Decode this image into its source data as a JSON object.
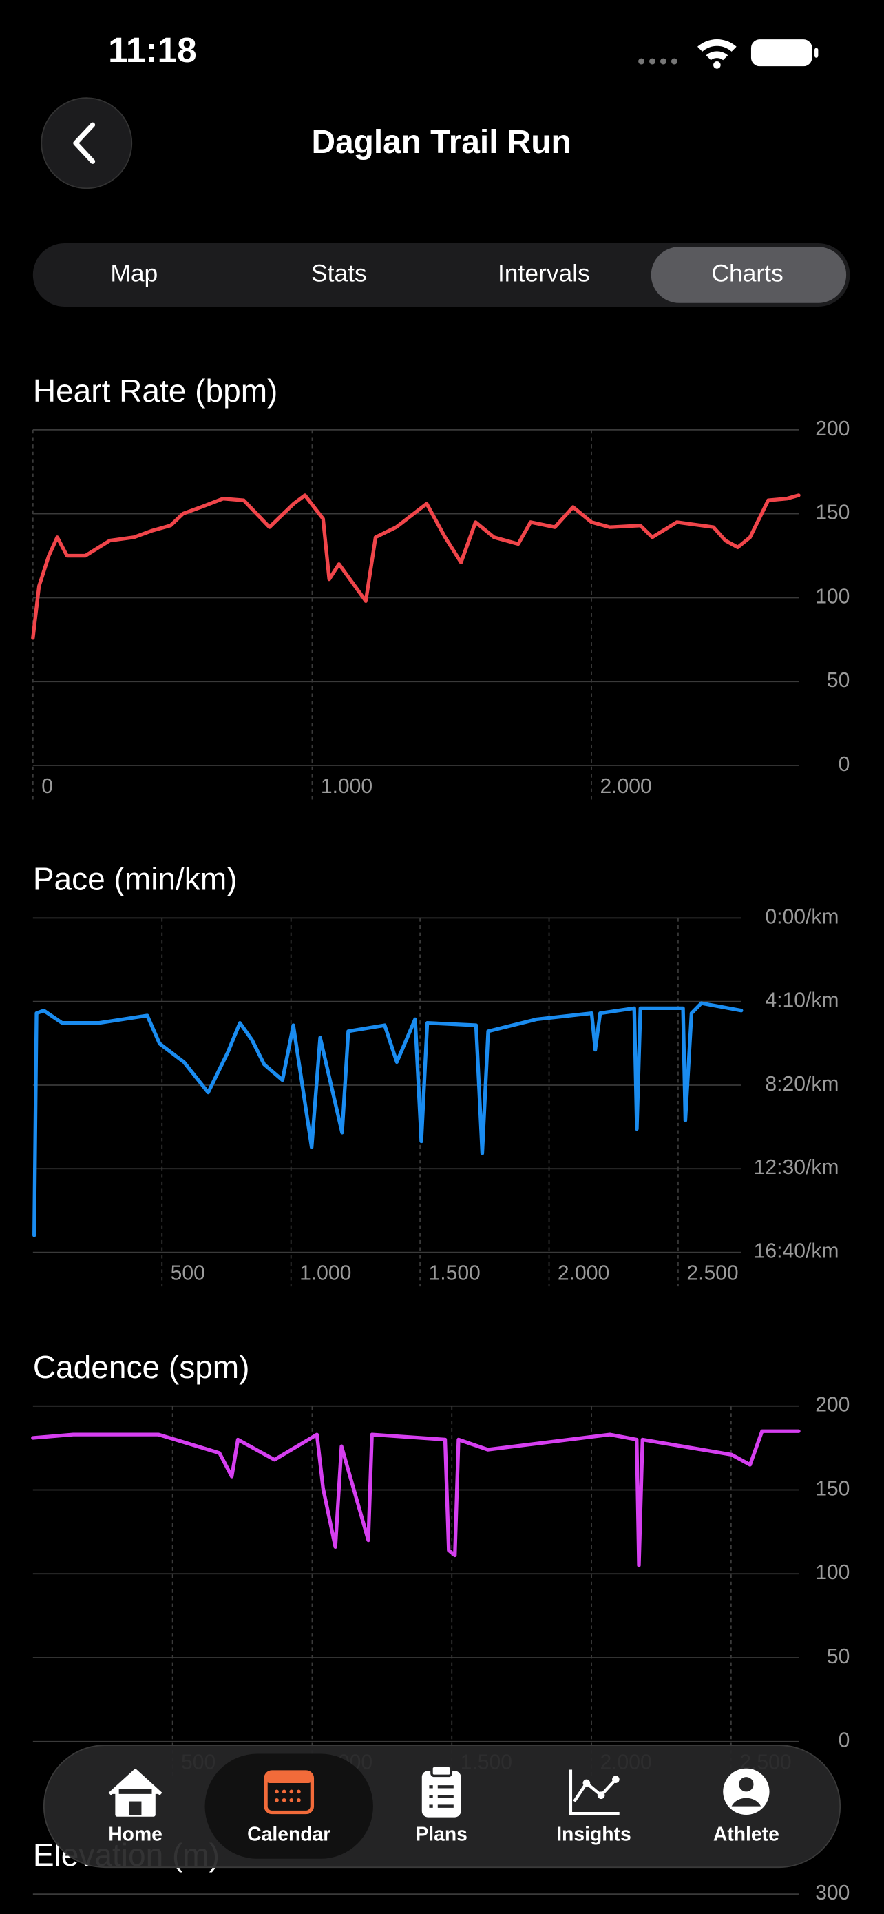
{
  "status_bar": {
    "time": "11:18"
  },
  "header": {
    "title": "Daglan Trail Run"
  },
  "tabs": [
    "Map",
    "Stats",
    "Intervals",
    "Charts"
  ],
  "selected_tab": 3,
  "chart_data": [
    {
      "type": "line",
      "title": "Heart Rate (bpm)",
      "color": "#f0454a",
      "x": [
        0,
        22,
        57,
        87,
        122,
        188,
        275,
        362,
        428,
        493,
        537,
        603,
        681,
        755,
        847,
        934,
        974,
        1039,
        1061,
        1096,
        1192,
        1227,
        1301,
        1410,
        1476,
        1533,
        1585,
        1651,
        1738,
        1782,
        1869,
        1934,
        2000,
        2066,
        2175,
        2218,
        2306,
        2437,
        2480,
        2524,
        2568,
        2633,
        2699,
        2742
      ],
      "values": [
        76,
        107,
        125,
        136,
        125,
        125,
        134,
        136,
        140,
        143,
        150,
        154,
        159,
        158,
        142,
        156,
        161,
        147,
        111,
        120,
        98,
        136,
        142,
        156,
        136,
        121,
        145,
        136,
        132,
        145,
        142,
        154,
        145,
        142,
        143,
        136,
        145,
        142,
        134,
        130,
        136,
        158,
        159,
        161
      ],
      "xlim": [
        0,
        2742
      ],
      "ylim": [
        0,
        200
      ],
      "xticks": [
        0,
        {
          "value": 1000,
          "label": "1.000"
        },
        {
          "value": 2000,
          "label": "2.000"
        }
      ],
      "yticks": [
        0,
        50,
        100,
        150,
        200
      ],
      "grid": true
    },
    {
      "type": "line",
      "title": "Pace (min/km)",
      "color": "#1a8cf0",
      "x": [
        5,
        14,
        42,
        113,
        255,
        443,
        491,
        585,
        679,
        755,
        802,
        849,
        896,
        967,
        1009,
        1080,
        1113,
        1198,
        1222,
        1363,
        1410,
        1481,
        1505,
        1528,
        1717,
        1741,
        1764,
        1953,
        2165,
        2179,
        2198,
        2330,
        2340,
        2354,
        2519,
        2528,
        2552,
        2590,
        2745
      ],
      "values": [
        949,
        285,
        277,
        314,
        314,
        292,
        376,
        431,
        522,
        402,
        314,
        365,
        438,
        485,
        321,
        686,
        358,
        642,
        339,
        321,
        431,
        303,
        668,
        314,
        321,
        704,
        339,
        303,
        285,
        394,
        285,
        270,
        631,
        270,
        270,
        606,
        285,
        255,
        277
      ],
      "xlim": [
        0,
        2745
      ],
      "ylim": [
        1000,
        0
      ],
      "xticks": [
        500,
        {
          "value": 1000,
          "label": "1.000"
        },
        {
          "value": 1500,
          "label": "1.500"
        },
        {
          "value": 2000,
          "label": "2.000"
        },
        {
          "value": 2500,
          "label": "2.500"
        }
      ],
      "yticks": [
        {
          "value": 0,
          "label": "0:00/km"
        },
        {
          "value": 250,
          "label": "4:10/km"
        },
        {
          "value": 500,
          "label": "8:20/km"
        },
        {
          "value": 750,
          "label": "12:30/km"
        },
        {
          "value": 1000,
          "label": "16:40/km"
        }
      ],
      "grid": true
    },
    {
      "type": "line",
      "title": "Cadence (spm)",
      "color": "#d63ff0",
      "x": [
        0,
        144,
        450,
        668,
        712,
        734,
        865,
        1017,
        1039,
        1083,
        1105,
        1201,
        1214,
        1476,
        1489,
        1511,
        1524,
        1629,
        2066,
        2162,
        2170,
        2183,
        2502,
        2568,
        2611,
        2742
      ],
      "values": [
        181,
        183,
        183,
        172,
        158,
        180,
        168,
        183,
        151,
        116,
        176,
        120,
        183,
        180,
        114,
        111,
        180,
        174,
        183,
        180,
        105,
        180,
        171,
        165,
        185,
        185
      ],
      "xlim": [
        0,
        2742
      ],
      "ylim": [
        0,
        200
      ],
      "xticks": [
        500,
        {
          "value": 1000,
          "label": "1.000"
        },
        {
          "value": 1500,
          "label": "1.500"
        },
        {
          "value": 2000,
          "label": "2.000"
        },
        {
          "value": 2500,
          "label": "2.500"
        }
      ],
      "yticks": [
        0,
        50,
        100,
        150,
        200
      ],
      "grid": true
    },
    {
      "type": "line",
      "title": "Elevation (m)",
      "yticks": [
        300
      ],
      "grid": true
    }
  ],
  "nav": [
    "Home",
    "Calendar",
    "Plans",
    "Insights",
    "Athlete"
  ],
  "selected_nav": 1
}
